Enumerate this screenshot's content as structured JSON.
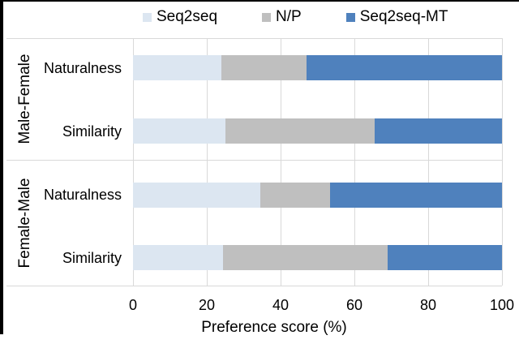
{
  "chart_data": {
    "type": "bar",
    "orientation": "horizontal",
    "stacked": true,
    "title": "",
    "xlabel": "Preference score (%)",
    "xlim": [
      0,
      100
    ],
    "xticks": [
      "0",
      "20",
      "40",
      "60",
      "80",
      "100"
    ],
    "grid": true,
    "legend_position": "top",
    "groups": [
      {
        "label": "Male-Female"
      },
      {
        "label": "Female-Male"
      }
    ],
    "categories": [
      {
        "group": "Male-Female",
        "label": "Naturalness"
      },
      {
        "group": "Male-Female",
        "label": "Similarity"
      },
      {
        "group": "Female-Male",
        "label": "Naturalness"
      },
      {
        "group": "Female-Male",
        "label": "Similarity"
      }
    ],
    "series": [
      {
        "name": "Seq2seq",
        "color": "#dce6f1",
        "values": [
          24,
          25,
          34.5,
          24.5
        ]
      },
      {
        "name": "N/P",
        "color": "#bfbfbf",
        "values": [
          23,
          40.5,
          19,
          44.5
        ]
      },
      {
        "name": "Seq2seq-MT",
        "color": "#4f81bd",
        "values": [
          53,
          34.5,
          46.5,
          31
        ]
      }
    ]
  },
  "colors": {
    "gridline": "#d9d9d9",
    "text": "#000000",
    "frame": "#000000",
    "background": "#ffffff"
  }
}
